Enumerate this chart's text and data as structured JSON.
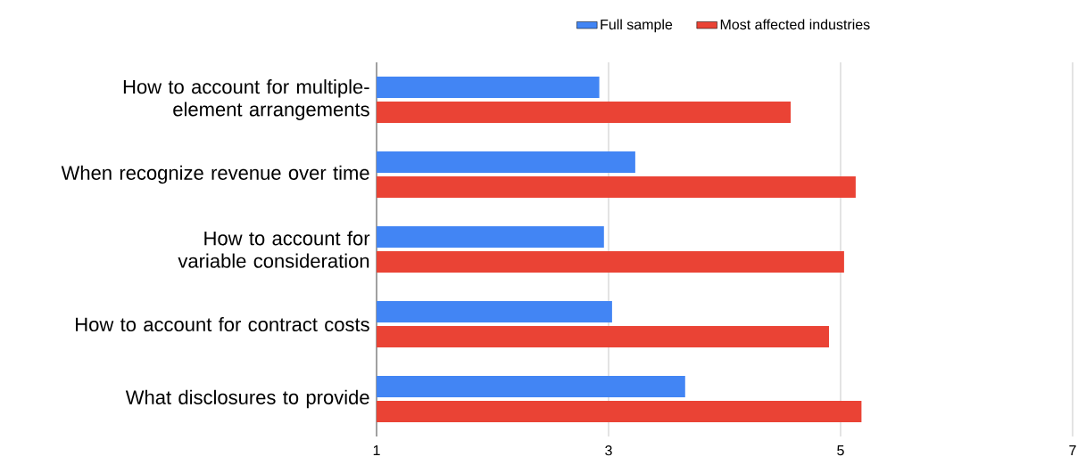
{
  "chart_data": {
    "type": "bar",
    "orientation": "horizontal",
    "categories": [
      "How to account for multiple-element arrangements",
      "When recognize revenue over time",
      "How to account for variable consideration",
      "How to account for contract costs",
      "What disclosures to provide"
    ],
    "series": [
      {
        "name": "Full sample",
        "color": "#4285f4",
        "values": [
          2.92,
          3.23,
          2.96,
          3.03,
          3.66
        ]
      },
      {
        "name": "Most affected industries",
        "color": "#ea4335",
        "values": [
          4.57,
          5.13,
          5.03,
          4.9,
          5.18
        ]
      }
    ],
    "xlim": [
      1,
      7
    ],
    "xticks": [
      1,
      3,
      5,
      7
    ],
    "grid": "x",
    "legend": "top"
  }
}
